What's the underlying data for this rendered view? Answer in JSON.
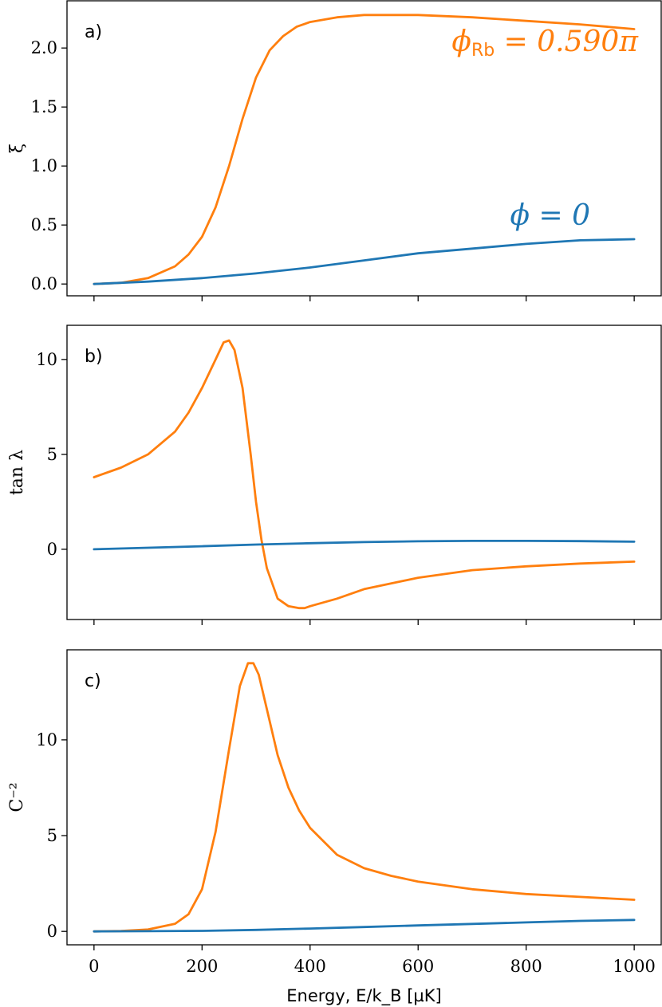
{
  "colors": {
    "orange": "#ff7f0e",
    "blue": "#1f77b4"
  },
  "chart_data": [
    {
      "type": "line",
      "panel": "a)",
      "ylabel": "ξ",
      "ylim": [
        -0.1,
        2.4
      ],
      "yticks": [
        0.0,
        0.5,
        1.0,
        1.5,
        2.0
      ],
      "ytick_labels": [
        "0.0",
        "0.5",
        "1.0",
        "1.5",
        "2.0"
      ],
      "xlim": [
        -50,
        1050
      ],
      "annotations": [
        {
          "text": "ϕ",
          "sub": "Rb",
          "rest": " = 0.590π",
          "series": "orange"
        },
        {
          "text": "ϕ = 0",
          "series": "blue"
        }
      ],
      "series": [
        {
          "name": "ϕRb = 0.590π",
          "color": "#ff7f0e",
          "x": [
            0,
            50,
            100,
            150,
            175,
            200,
            225,
            250,
            275,
            300,
            325,
            350,
            375,
            400,
            450,
            500,
            600,
            700,
            800,
            900,
            1000
          ],
          "y": [
            0.0,
            0.01,
            0.05,
            0.15,
            0.25,
            0.4,
            0.65,
            1.0,
            1.4,
            1.75,
            1.98,
            2.1,
            2.18,
            2.22,
            2.26,
            2.28,
            2.28,
            2.26,
            2.23,
            2.2,
            2.16
          ]
        },
        {
          "name": "ϕ = 0",
          "color": "#1f77b4",
          "x": [
            0,
            100,
            200,
            300,
            400,
            500,
            600,
            700,
            800,
            900,
            1000
          ],
          "y": [
            0.0,
            0.02,
            0.05,
            0.09,
            0.14,
            0.2,
            0.26,
            0.3,
            0.34,
            0.37,
            0.38
          ]
        }
      ]
    },
    {
      "type": "line",
      "panel": "b)",
      "ylabel": "tan λ",
      "ylim": [
        -3.7,
        11.8
      ],
      "yticks": [
        0,
        5,
        10
      ],
      "ytick_labels": [
        "0",
        "5",
        "10"
      ],
      "xlim": [
        -50,
        1050
      ],
      "series": [
        {
          "name": "ϕRb = 0.590π",
          "color": "#ff7f0e",
          "x": [
            0,
            50,
            100,
            150,
            175,
            200,
            225,
            240,
            250,
            260,
            275,
            290,
            300,
            310,
            320,
            340,
            360,
            380,
            390,
            400,
            450,
            500,
            600,
            700,
            800,
            900,
            1000
          ],
          "y": [
            3.8,
            4.3,
            5.0,
            6.2,
            7.2,
            8.5,
            10.0,
            10.9,
            11.0,
            10.5,
            8.5,
            5.0,
            2.5,
            0.5,
            -1.0,
            -2.6,
            -3.0,
            -3.1,
            -3.1,
            -3.0,
            -2.6,
            -2.1,
            -1.5,
            -1.1,
            -0.9,
            -0.75,
            -0.65
          ]
        },
        {
          "name": "ϕ = 0",
          "color": "#1f77b4",
          "x": [
            0,
            100,
            200,
            300,
            400,
            500,
            600,
            700,
            800,
            900,
            1000
          ],
          "y": [
            0.0,
            0.08,
            0.16,
            0.25,
            0.32,
            0.38,
            0.42,
            0.44,
            0.44,
            0.43,
            0.4
          ]
        }
      ]
    },
    {
      "type": "line",
      "panel": "c)",
      "ylabel": "C⁻²",
      "ylim": [
        -0.7,
        14.7
      ],
      "yticks": [
        0,
        5,
        10
      ],
      "ytick_labels": [
        "0",
        "5",
        "10"
      ],
      "xlim": [
        -50,
        1050
      ],
      "xticks": [
        0,
        200,
        400,
        600,
        800,
        1000
      ],
      "xtick_labels": [
        "0",
        "200",
        "400",
        "600",
        "800",
        "1000"
      ],
      "xlabel": "Energy, E/k_B [µK]",
      "series": [
        {
          "name": "ϕRb = 0.590π",
          "color": "#ff7f0e",
          "x": [
            0,
            50,
            100,
            150,
            175,
            200,
            225,
            250,
            270,
            285,
            295,
            305,
            320,
            340,
            360,
            380,
            400,
            450,
            500,
            550,
            600,
            700,
            800,
            900,
            1000
          ],
          "y": [
            0.0,
            0.02,
            0.1,
            0.4,
            0.9,
            2.2,
            5.2,
            9.5,
            12.8,
            14.0,
            14.0,
            13.4,
            11.6,
            9.2,
            7.5,
            6.3,
            5.4,
            4.0,
            3.3,
            2.9,
            2.6,
            2.2,
            1.95,
            1.8,
            1.65
          ]
        },
        {
          "name": "ϕ = 0",
          "color": "#1f77b4",
          "x": [
            0,
            100,
            200,
            300,
            400,
            500,
            600,
            700,
            800,
            900,
            1000
          ],
          "y": [
            0.0,
            0.01,
            0.03,
            0.08,
            0.15,
            0.23,
            0.31,
            0.39,
            0.47,
            0.55,
            0.6
          ]
        }
      ]
    }
  ]
}
